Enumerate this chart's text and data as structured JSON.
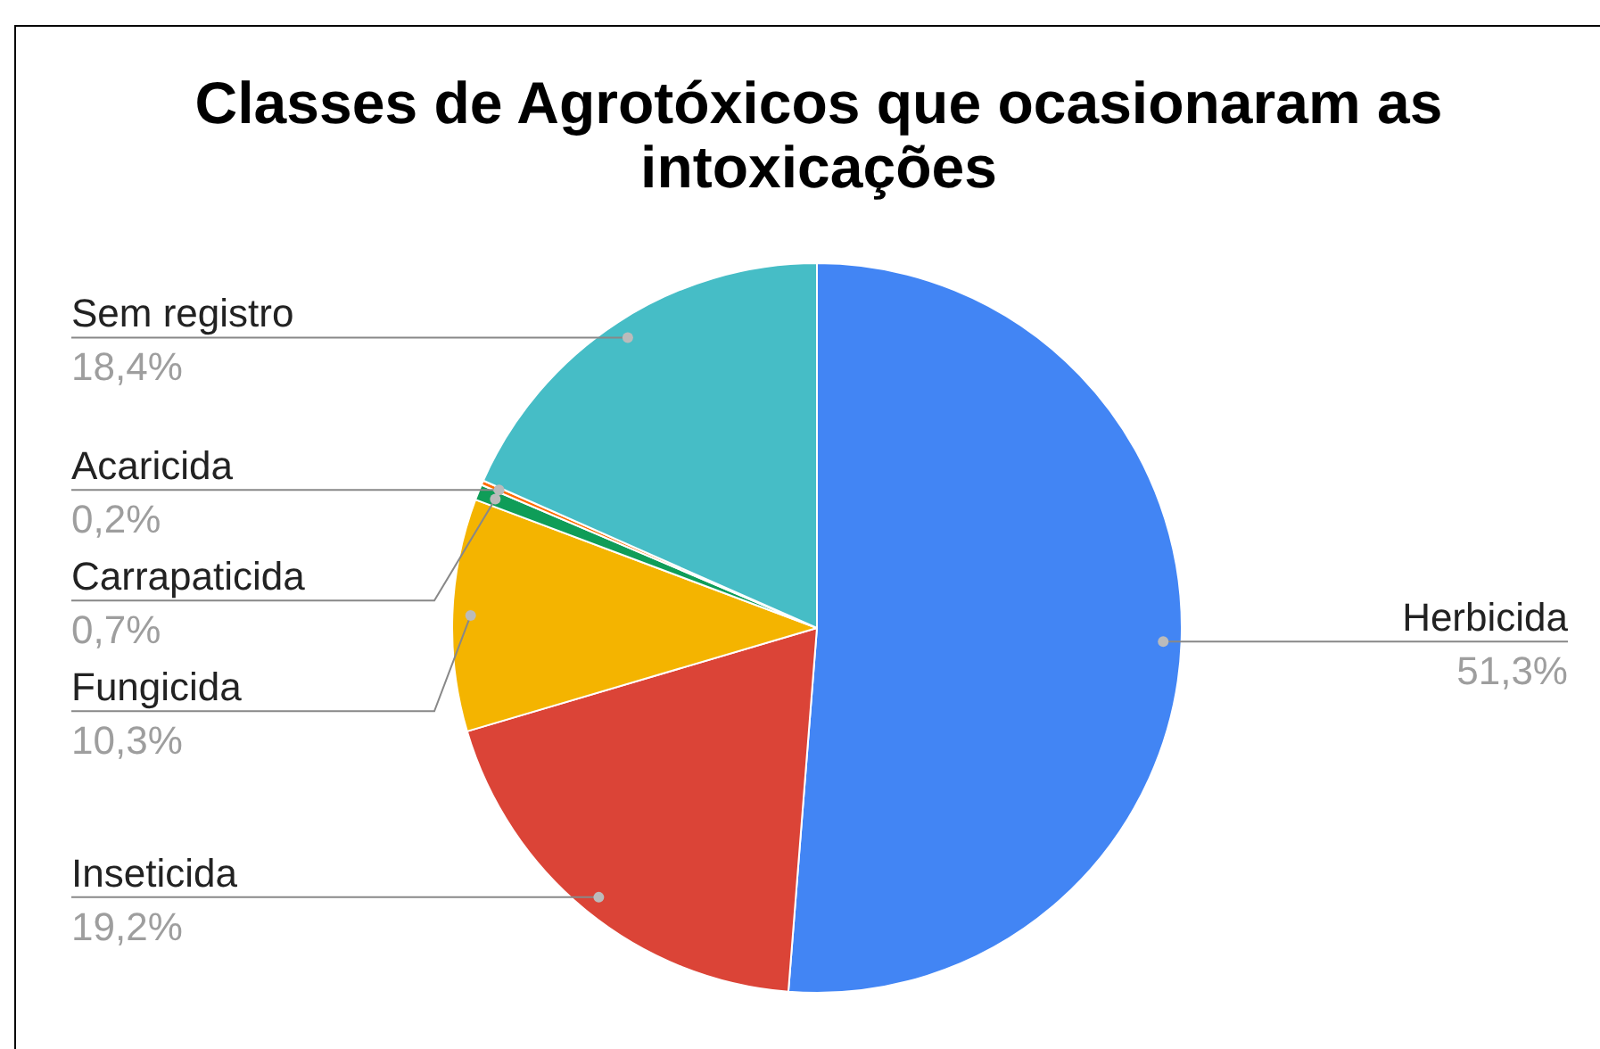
{
  "chart_data": {
    "type": "pie",
    "title": "Classes de Agrotóxicos que ocasionaram as intoxicações",
    "categories": [
      "Herbicida",
      "Inseticida",
      "Fungicida",
      "Carrapaticida",
      "Acaricida",
      "Sem registro"
    ],
    "values": [
      51.3,
      19.2,
      10.3,
      0.7,
      0.2,
      18.4
    ],
    "value_labels": [
      "51,3%",
      "19,2%",
      "10,3%",
      "0,7%",
      "0,2%",
      "18,4%"
    ],
    "colors": [
      "#4285f4",
      "#db4437",
      "#f4b400",
      "#0f9d58",
      "#ff6d01",
      "#46bdc6"
    ]
  }
}
